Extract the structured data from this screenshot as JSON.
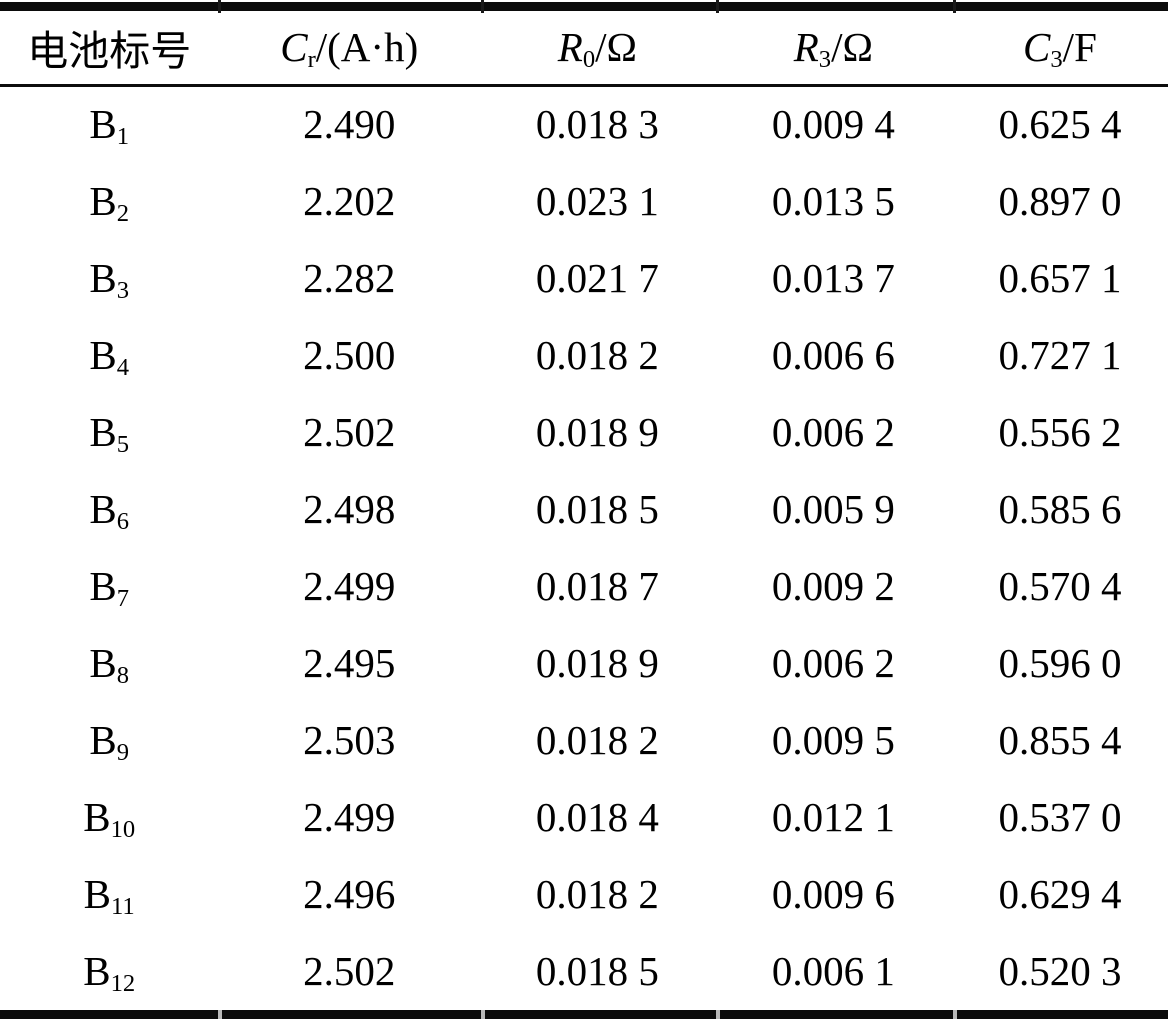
{
  "table": {
    "name": "battery-parameters-table",
    "columns": [
      {
        "label": "电池标号"
      },
      {
        "sym": "C",
        "sub": "r",
        "rest": "/(A·h)"
      },
      {
        "sym": "R",
        "sub": "0",
        "rest": "/Ω"
      },
      {
        "sym": "R",
        "sub": "3",
        "rest": "/Ω"
      },
      {
        "sym": "C",
        "sub": "3",
        "rest": "/F"
      }
    ],
    "rows": [
      {
        "label": "B",
        "sub": "1",
        "values": [
          "2.490",
          "0.018 3",
          "0.009 4",
          "0.625 4"
        ]
      },
      {
        "label": "B",
        "sub": "2",
        "values": [
          "2.202",
          "0.023 1",
          "0.013 5",
          "0.897 0"
        ]
      },
      {
        "label": "B",
        "sub": "3",
        "values": [
          "2.282",
          "0.021 7",
          "0.013 7",
          "0.657 1"
        ]
      },
      {
        "label": "B",
        "sub": "4",
        "values": [
          "2.500",
          "0.018 2",
          "0.006 6",
          "0.727 1"
        ]
      },
      {
        "label": "B",
        "sub": "5",
        "values": [
          "2.502",
          "0.018 9",
          "0.006 2",
          "0.556 2"
        ]
      },
      {
        "label": "B",
        "sub": "6",
        "values": [
          "2.498",
          "0.018 5",
          "0.005 9",
          "0.585 6"
        ]
      },
      {
        "label": "B",
        "sub": "7",
        "values": [
          "2.499",
          "0.018 7",
          "0.009 2",
          "0.570 4"
        ]
      },
      {
        "label": "B",
        "sub": "8",
        "values": [
          "2.495",
          "0.018 9",
          "0.006 2",
          "0.596 0"
        ]
      },
      {
        "label": "B",
        "sub": "9",
        "values": [
          "2.503",
          "0.018 2",
          "0.009 5",
          "0.855 4"
        ]
      },
      {
        "label": "B",
        "sub": "10",
        "values": [
          "2.499",
          "0.018 4",
          "0.012 1",
          "0.537 0"
        ]
      },
      {
        "label": "B",
        "sub": "11",
        "values": [
          "2.496",
          "0.018 2",
          "0.009 6",
          "0.629 4"
        ]
      },
      {
        "label": "B",
        "sub": "12",
        "values": [
          "2.502",
          "0.018 5",
          "0.006 1",
          "0.520 3"
        ]
      }
    ],
    "column_boundaries_pct": [
      18.66,
      41.18,
      61.3,
      81.59
    ]
  },
  "colors": {
    "text": "#000000",
    "background": "#ffffff",
    "rule": "#0b0b0b",
    "rule_gap": "#b9b9b9"
  }
}
